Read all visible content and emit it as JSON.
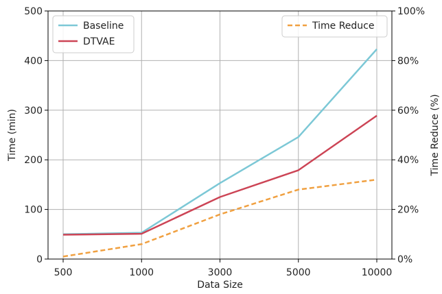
{
  "chart_data": {
    "type": "line",
    "title": "",
    "xlabel": "Data Size",
    "ylabel": "Time (min)",
    "y2label": "Time Reduce (%)",
    "categories": [
      "500",
      "1000",
      "3000",
      "5000",
      "10000"
    ],
    "ylim": [
      0,
      500
    ],
    "y2lim": [
      0,
      100
    ],
    "yticks": [
      "0",
      "100",
      "200",
      "300",
      "400",
      "500"
    ],
    "y2ticks": [
      "0%",
      "20%",
      "40%",
      "60%",
      "80%",
      "100%"
    ],
    "grid": true,
    "series": [
      {
        "name": "Baseline",
        "axis": "left",
        "color": "#7cc8d6",
        "style": "solid",
        "values": [
          50,
          53,
          153,
          246,
          423
        ]
      },
      {
        "name": "DTVAE",
        "axis": "left",
        "color": "#cc4455",
        "style": "solid",
        "values": [
          49,
          51,
          125,
          179,
          289
        ]
      },
      {
        "name": "Time Reduce",
        "axis": "right",
        "color": "#f0a040",
        "style": "dashed",
        "values": [
          1,
          6,
          18,
          28,
          32
        ]
      }
    ],
    "legend_left_placement": "top-left",
    "legend_right_placement": "top-right"
  }
}
